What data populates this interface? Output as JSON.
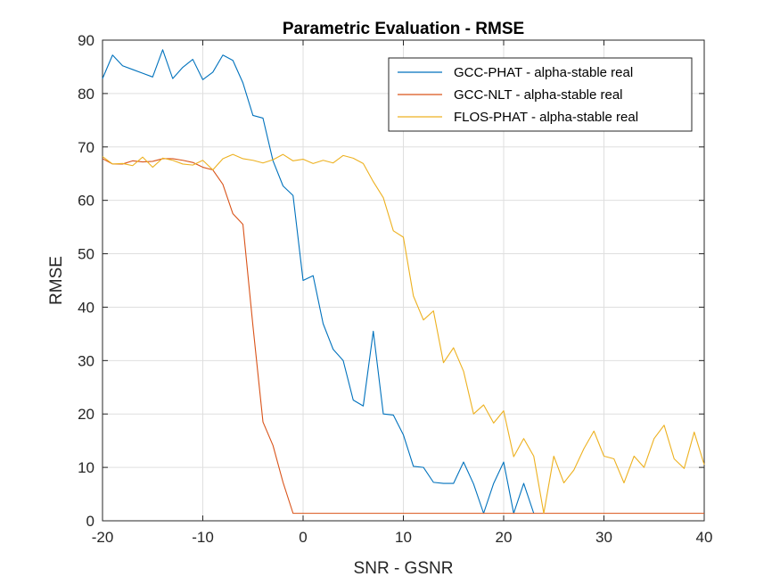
{
  "chart_data": {
    "type": "line",
    "title": "Parametric Evaluation - RMSE",
    "xlabel": "SNR - GSNR",
    "ylabel": "RMSE",
    "xlim": [
      -20,
      40
    ],
    "ylim": [
      0,
      90
    ],
    "xticks": [
      -20,
      -10,
      0,
      10,
      20,
      30,
      40
    ],
    "yticks": [
      0,
      10,
      20,
      30,
      40,
      50,
      60,
      70,
      80,
      90
    ],
    "grid": true,
    "legend_position": "top-right",
    "series": [
      {
        "name": "GCC-PHAT - alpha-stable real",
        "color": "#0072BD",
        "x": [
          -20,
          -19,
          -18,
          -17,
          -16,
          -15,
          -14,
          -13,
          -12,
          -11,
          -10,
          -9,
          -8,
          -7,
          -6,
          -5,
          -4,
          -3,
          -2,
          -1,
          0,
          1,
          2,
          3,
          4,
          5,
          6,
          7,
          8,
          9,
          10,
          11,
          12,
          13,
          14,
          15,
          16,
          17,
          18,
          19,
          20,
          21,
          22,
          23
        ],
        "y": [
          82.8,
          87.2,
          85.2,
          84.5,
          83.8,
          83.1,
          88.2,
          82.8,
          84.9,
          86.4,
          82.6,
          84.0,
          87.2,
          86.2,
          82.0,
          75.9,
          75.4,
          67.4,
          62.7,
          60.9,
          45.0,
          45.9,
          36.9,
          32.1,
          30.0,
          22.6,
          21.5,
          35.5,
          20.0,
          19.8,
          16.1,
          10.2,
          10.0,
          7.2,
          7.0,
          7.0,
          11.0,
          6.9,
          1.4,
          7.0,
          11.0,
          1.4,
          7.0,
          1.4
        ]
      },
      {
        "name": "GCC-NLT - alpha-stable real",
        "color": "#D95319",
        "x": [
          -20,
          -19,
          -18,
          -17,
          -16,
          -15,
          -14,
          -13,
          -12,
          -11,
          -10,
          -9,
          -8,
          -7,
          -6,
          -5,
          -4,
          -3,
          -2,
          -1,
          0,
          1,
          2,
          3,
          4,
          5,
          6,
          7,
          8,
          9,
          10,
          11,
          12,
          13,
          14,
          15,
          16,
          17,
          18,
          19,
          20,
          21,
          22,
          23,
          24,
          25,
          26,
          27,
          28,
          29,
          30,
          31,
          32,
          33,
          34,
          35,
          36,
          37,
          38,
          39,
          40
        ],
        "y": [
          67.8,
          66.8,
          66.8,
          67.4,
          67.2,
          67.3,
          67.8,
          67.8,
          67.5,
          67.1,
          66.2,
          65.7,
          63.0,
          57.5,
          55.5,
          36.5,
          18.5,
          14.1,
          7.2,
          1.4,
          1.4,
          1.4,
          1.4,
          1.4,
          1.4,
          1.4,
          1.4,
          1.4,
          1.4,
          1.4,
          1.4,
          1.4,
          1.4,
          1.4,
          1.4,
          1.4,
          1.4,
          1.4,
          1.4,
          1.4,
          1.4,
          1.4,
          1.4,
          1.4,
          1.4,
          1.4,
          1.4,
          1.4,
          1.4,
          1.4,
          1.4,
          1.4,
          1.4,
          1.4,
          1.4,
          1.4,
          1.4,
          1.4,
          1.4,
          1.4,
          1.4
        ]
      },
      {
        "name": "FLOS-PHAT - alpha-stable real",
        "color": "#EDB120",
        "x": [
          -20,
          -19,
          -18,
          -17,
          -16,
          -15,
          -14,
          -13,
          -12,
          -11,
          -10,
          -9,
          -8,
          -7,
          -6,
          -5,
          -4,
          -3,
          -2,
          -1,
          0,
          1,
          2,
          3,
          4,
          5,
          6,
          7,
          8,
          9,
          10,
          11,
          12,
          13,
          14,
          15,
          16,
          17,
          18,
          19,
          20,
          21,
          22,
          23,
          24,
          25,
          26,
          27,
          28,
          29,
          30,
          31,
          32,
          33,
          34,
          35,
          36,
          37,
          38,
          39,
          40
        ],
        "y": [
          68.2,
          66.8,
          66.9,
          66.5,
          68.1,
          66.2,
          67.9,
          67.5,
          66.8,
          66.6,
          67.5,
          65.7,
          67.8,
          68.6,
          67.8,
          67.5,
          67.0,
          67.6,
          68.6,
          67.4,
          67.7,
          66.9,
          67.5,
          67.0,
          68.4,
          67.9,
          66.9,
          63.5,
          60.5,
          54.3,
          53.1,
          42.1,
          37.6,
          39.3,
          29.6,
          32.4,
          28.0,
          20.0,
          21.7,
          18.3,
          20.6,
          12.0,
          15.4,
          12.1,
          1.4,
          12.1,
          7.1,
          9.5,
          13.5,
          16.8,
          12.1,
          11.6,
          7.1,
          12.1,
          10.0,
          15.4,
          17.9,
          11.6,
          9.8,
          16.6,
          10.5
        ]
      }
    ]
  }
}
